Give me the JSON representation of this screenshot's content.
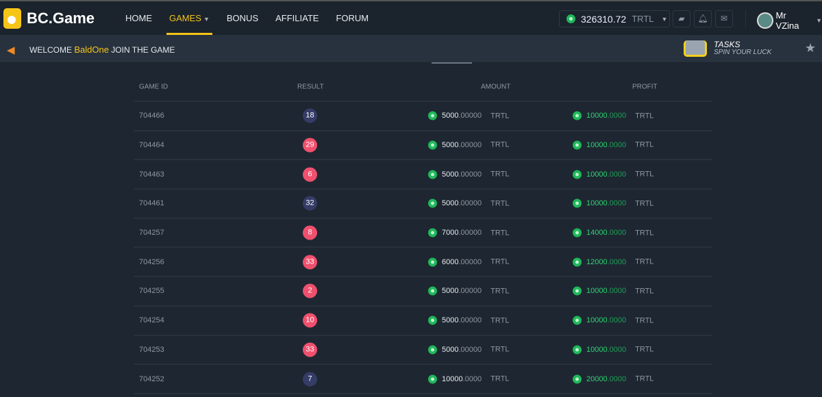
{
  "brand": "BC.Game",
  "nav": [
    {
      "label": "HOME"
    },
    {
      "label": "GAMES",
      "active": true
    },
    {
      "label": "BONUS"
    },
    {
      "label": "AFFILIATE"
    },
    {
      "label": "FORUM"
    }
  ],
  "wallet": {
    "balance": "326310.72",
    "currency": "TRTL"
  },
  "user": {
    "name": "Mr VZina"
  },
  "banner": {
    "prefix": "WELCOME",
    "name": "BaldOne",
    "suffix": "JOIN THE GAME"
  },
  "tasks": {
    "title": "TASKS",
    "subtitle": "SPIN YOUR LUCK"
  },
  "colors": {
    "accent": "#f5c518",
    "win": "#2ed575",
    "red_ball": "#f0506e",
    "dark_ball": "#353c66"
  },
  "table": {
    "headers": {
      "game_id": "GAME ID",
      "result": "RESULT",
      "amount": "AMOUNT",
      "profit": "PROFIT"
    },
    "currency": "TRTL",
    "rows": [
      {
        "id": "704466",
        "result": "18",
        "color": "dark",
        "amt_i": "5000",
        "amt_d": ".00000",
        "pro_i": "10000",
        "pro_d": ".0000"
      },
      {
        "id": "704464",
        "result": "29",
        "color": "red",
        "amt_i": "5000",
        "amt_d": ".00000",
        "pro_i": "10000",
        "pro_d": ".0000"
      },
      {
        "id": "704463",
        "result": "6",
        "color": "red",
        "amt_i": "5000",
        "amt_d": ".00000",
        "pro_i": "10000",
        "pro_d": ".0000"
      },
      {
        "id": "704461",
        "result": "32",
        "color": "dark",
        "amt_i": "5000",
        "amt_d": ".00000",
        "pro_i": "10000",
        "pro_d": ".0000"
      },
      {
        "id": "704257",
        "result": "8",
        "color": "red",
        "amt_i": "7000",
        "amt_d": ".00000",
        "pro_i": "14000",
        "pro_d": ".0000"
      },
      {
        "id": "704256",
        "result": "33",
        "color": "red",
        "amt_i": "6000",
        "amt_d": ".00000",
        "pro_i": "12000",
        "pro_d": ".0000"
      },
      {
        "id": "704255",
        "result": "2",
        "color": "red",
        "amt_i": "5000",
        "amt_d": ".00000",
        "pro_i": "10000",
        "pro_d": ".0000"
      },
      {
        "id": "704254",
        "result": "10",
        "color": "red",
        "amt_i": "5000",
        "amt_d": ".00000",
        "pro_i": "10000",
        "pro_d": ".0000"
      },
      {
        "id": "704253",
        "result": "33",
        "color": "red",
        "amt_i": "5000",
        "amt_d": ".00000",
        "pro_i": "10000",
        "pro_d": ".0000"
      },
      {
        "id": "704252",
        "result": "7",
        "color": "dark",
        "amt_i": "10000",
        "amt_d": ".0000",
        "pro_i": "20000",
        "pro_d": ".0000"
      }
    ]
  }
}
